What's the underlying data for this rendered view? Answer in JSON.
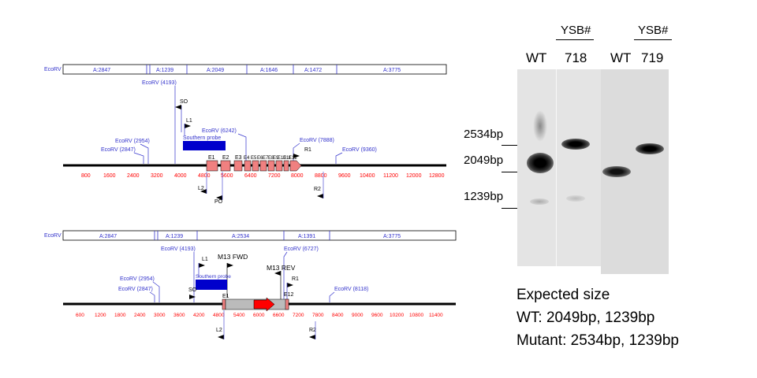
{
  "map1": {
    "ecorv_label": "EcoRV",
    "fragments": [
      "A:2847",
      "A:1239",
      "A:2049",
      "A:1646",
      "A:1472",
      "A:3775"
    ],
    "sites": [
      "EcoRV (4193)",
      "EcoRV (6242)",
      "EcoRV (2954)",
      "EcoRV (2847)",
      "EcoRV (7888)",
      "EcoRV (9360)"
    ],
    "primers": [
      "SO",
      "L1",
      "R1",
      "L2",
      "PO",
      "R2"
    ],
    "probe_label": "Southern probe",
    "exons": [
      "E1",
      "E2",
      "E3",
      "E4",
      "E5",
      "E6",
      "E7",
      "E8",
      "E9",
      "E10",
      "E11",
      "E12"
    ],
    "ticks": [
      "800",
      "1600",
      "2400",
      "3200",
      "4000",
      "4800",
      "5600",
      "6400",
      "7200",
      "8000",
      "8800",
      "9600",
      "10400",
      "11200",
      "12000",
      "12800"
    ]
  },
  "map2": {
    "ecorv_label": "EcoRV",
    "fragments": [
      "A:2847",
      "A:1239",
      "A:2534",
      "A:1391",
      "A:3775"
    ],
    "sites": [
      "EcoRV (4193)",
      "EcoRV (6727)",
      "EcoRV (2954)",
      "EcoRV (2847)",
      "EcoRV (8118)"
    ],
    "primers": [
      "L1",
      "M13 FWD",
      "M13 REV",
      "R1",
      "SO",
      "L2",
      "R2"
    ],
    "probe_label": "Southern probe",
    "exons": [
      "E1",
      "E12"
    ],
    "ticks": [
      "600",
      "1200",
      "1800",
      "2400",
      "3000",
      "3600",
      "4200",
      "4800",
      "5400",
      "6000",
      "6600",
      "7200",
      "7800",
      "8400",
      "9000",
      "9600",
      "10200",
      "10800",
      "11400"
    ]
  },
  "blot": {
    "lanes": [
      "WT",
      "718",
      "WT",
      "719"
    ],
    "group_label_1": "YSB#",
    "group_label_2": "YSB#",
    "markers": [
      "2534bp",
      "2049bp",
      "1239bp"
    ]
  },
  "expected": {
    "title": "Expected size",
    "wt": "WT: 2049bp, 1239bp",
    "mutant": "Mutant: 2534bp, 1239bp"
  },
  "colors": {
    "map_text": "#3333cc",
    "tick_text": "#ff0000",
    "exon_fill": "#f08080",
    "probe": "#0000cc",
    "cassette_gray": "#bbbbbb",
    "cassette_red": "#ff0000"
  }
}
